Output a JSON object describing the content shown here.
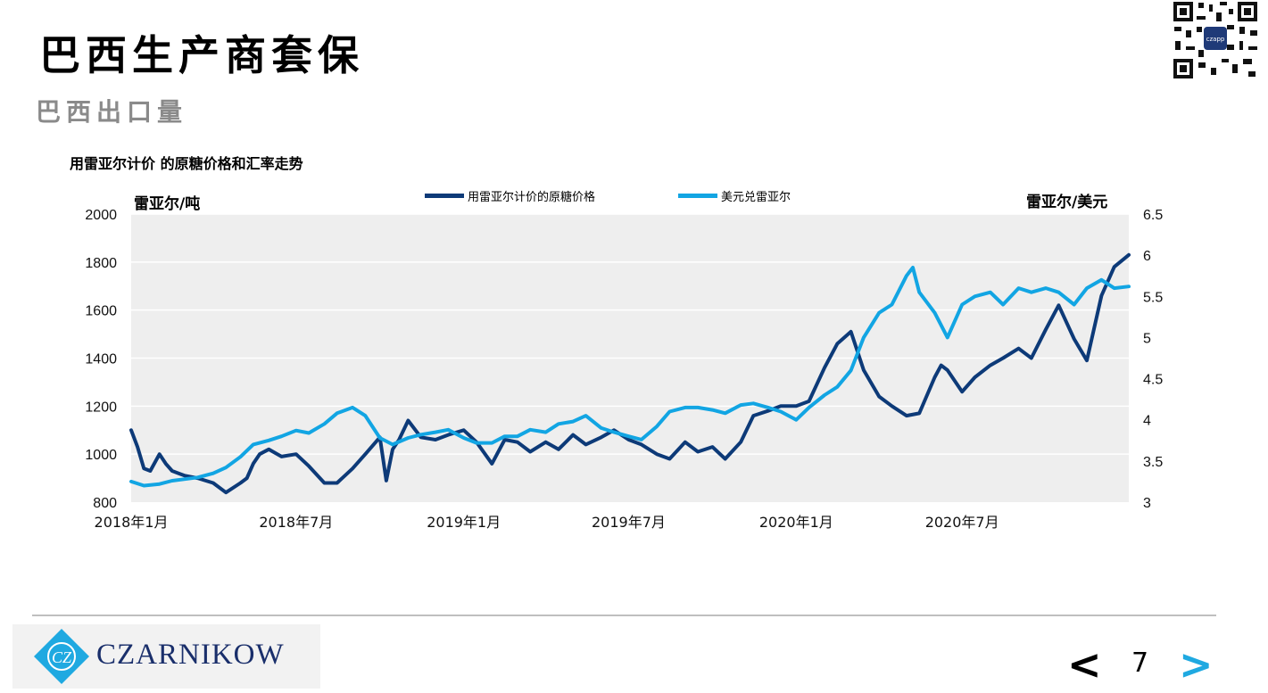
{
  "slide": {
    "title": "巴西生产商套保",
    "subtitle": "巴西出口量",
    "page_number": "7",
    "prev_label": "<",
    "next_label": ">",
    "logo_text": "CZARNIKOW",
    "logo_mark": "CZ"
  },
  "colors": {
    "dark_blue": "#0d3a78",
    "light_blue": "#12a5e3",
    "plot_bg": "#eeeeee",
    "next_arrow": "#1fa9e1"
  },
  "chart_data": {
    "type": "line",
    "title": "用雷亚尔计价 的原糖价格和汇率走势",
    "ylabel_left": "雷亚尔/吨",
    "ylabel_right": "雷亚尔/美元",
    "ylim_left": [
      800,
      2000
    ],
    "ylim_right": [
      3,
      6.5
    ],
    "yticks_left": [
      "800",
      "1000",
      "1200",
      "1400",
      "1600",
      "1800",
      "2000"
    ],
    "yticks_right": [
      "3",
      "3.5",
      "4",
      "4.5",
      "5",
      "5.5",
      "6",
      "6.5"
    ],
    "x_range": [
      "2018-01",
      "2020-12"
    ],
    "xtick_labels": [
      "2018年1月",
      "2018年7月",
      "2019年1月",
      "2019年7月",
      "2020年1月",
      "2020年7月"
    ],
    "grid": "horizontal",
    "legend_position": "top-center",
    "series": [
      {
        "name": "用雷亚尔计价的原糖价格",
        "axis": "left",
        "color": "#0d3a78",
        "x": [
          "2018-01-01",
          "2018-01-08",
          "2018-01-15",
          "2018-01-22",
          "2018-02-01",
          "2018-02-08",
          "2018-02-15",
          "2018-02-22",
          "2018-03-01",
          "2018-03-15",
          "2018-04-01",
          "2018-04-15",
          "2018-05-01",
          "2018-05-08",
          "2018-05-15",
          "2018-05-22",
          "2018-06-01",
          "2018-06-15",
          "2018-07-01",
          "2018-07-15",
          "2018-08-01",
          "2018-08-15",
          "2018-09-01",
          "2018-09-15",
          "2018-10-01",
          "2018-10-08",
          "2018-10-15",
          "2018-10-22",
          "2018-11-01",
          "2018-11-15",
          "2018-12-01",
          "2018-12-15",
          "2019-01-01",
          "2019-01-15",
          "2019-02-01",
          "2019-02-15",
          "2019-03-01",
          "2019-03-15",
          "2019-04-01",
          "2019-04-15",
          "2019-05-01",
          "2019-05-15",
          "2019-06-01",
          "2019-06-15",
          "2019-07-01",
          "2019-07-15",
          "2019-08-01",
          "2019-08-15",
          "2019-09-01",
          "2019-09-15",
          "2019-10-01",
          "2019-10-15",
          "2019-11-01",
          "2019-11-15",
          "2019-12-01",
          "2019-12-15",
          "2020-01-01",
          "2020-01-15",
          "2020-02-01",
          "2020-02-15",
          "2020-03-01",
          "2020-03-15",
          "2020-04-01",
          "2020-04-15",
          "2020-05-01",
          "2020-05-15",
          "2020-06-01",
          "2020-06-08",
          "2020-06-15",
          "2020-07-01",
          "2020-07-15",
          "2020-08-01",
          "2020-08-15",
          "2020-09-01",
          "2020-09-15",
          "2020-10-01",
          "2020-10-15",
          "2020-11-01",
          "2020-11-15",
          "2020-12-01",
          "2020-12-15",
          "2020-12-31"
        ],
        "values": [
          1100,
          1030,
          940,
          930,
          1000,
          960,
          930,
          920,
          910,
          900,
          880,
          840,
          880,
          900,
          960,
          1000,
          1020,
          990,
          1000,
          950,
          880,
          880,
          940,
          1000,
          1070,
          890,
          1020,
          1060,
          1140,
          1070,
          1060,
          1080,
          1100,
          1050,
          960,
          1060,
          1050,
          1010,
          1050,
          1020,
          1080,
          1040,
          1070,
          1100,
          1060,
          1040,
          1000,
          980,
          1050,
          1010,
          1030,
          980,
          1050,
          1160,
          1180,
          1200,
          1200,
          1220,
          1360,
          1460,
          1510,
          1350,
          1240,
          1200,
          1160,
          1170,
          1320,
          1370,
          1350,
          1260,
          1320,
          1370,
          1400,
          1440,
          1400,
          1520,
          1620,
          1480,
          1390,
          1660,
          1780,
          1830
        ]
      },
      {
        "name": "美元兑雷亚尔",
        "axis": "right",
        "color": "#12a5e3",
        "x": [
          "2018-01-01",
          "2018-01-15",
          "2018-02-01",
          "2018-02-15",
          "2018-03-01",
          "2018-03-15",
          "2018-04-01",
          "2018-04-15",
          "2018-05-01",
          "2018-05-15",
          "2018-06-01",
          "2018-06-15",
          "2018-07-01",
          "2018-07-15",
          "2018-08-01",
          "2018-08-15",
          "2018-09-01",
          "2018-09-15",
          "2018-10-01",
          "2018-10-15",
          "2018-11-01",
          "2018-11-15",
          "2018-12-01",
          "2018-12-15",
          "2019-01-01",
          "2019-01-15",
          "2019-02-01",
          "2019-02-15",
          "2019-03-01",
          "2019-03-15",
          "2019-04-01",
          "2019-04-15",
          "2019-05-01",
          "2019-05-15",
          "2019-06-01",
          "2019-06-15",
          "2019-07-01",
          "2019-07-15",
          "2019-08-01",
          "2019-08-15",
          "2019-09-01",
          "2019-09-15",
          "2019-10-01",
          "2019-10-15",
          "2019-11-01",
          "2019-11-15",
          "2019-12-01",
          "2019-12-15",
          "2020-01-01",
          "2020-01-15",
          "2020-02-01",
          "2020-02-15",
          "2020-03-01",
          "2020-03-15",
          "2020-04-01",
          "2020-04-15",
          "2020-05-01",
          "2020-05-08",
          "2020-05-15",
          "2020-06-01",
          "2020-06-15",
          "2020-07-01",
          "2020-07-15",
          "2020-08-01",
          "2020-08-15",
          "2020-09-01",
          "2020-09-15",
          "2020-10-01",
          "2020-10-15",
          "2020-11-01",
          "2020-11-15",
          "2020-12-01",
          "2020-12-15",
          "2020-12-31"
        ],
        "values": [
          3.25,
          3.2,
          3.22,
          3.26,
          3.28,
          3.3,
          3.35,
          3.42,
          3.55,
          3.7,
          3.75,
          3.8,
          3.87,
          3.84,
          3.95,
          4.08,
          4.15,
          4.05,
          3.78,
          3.7,
          3.78,
          3.82,
          3.85,
          3.88,
          3.78,
          3.72,
          3.72,
          3.8,
          3.8,
          3.88,
          3.85,
          3.95,
          3.98,
          4.05,
          3.9,
          3.85,
          3.8,
          3.76,
          3.92,
          4.1,
          4.15,
          4.15,
          4.12,
          4.08,
          4.18,
          4.2,
          4.15,
          4.1,
          4.0,
          4.15,
          4.3,
          4.4,
          4.6,
          5.0,
          5.3,
          5.4,
          5.75,
          5.85,
          5.55,
          5.3,
          5.0,
          5.4,
          5.5,
          5.55,
          5.4,
          5.6,
          5.55,
          5.6,
          5.55,
          5.4,
          5.6,
          5.7,
          5.6,
          5.62
        ]
      }
    ]
  }
}
